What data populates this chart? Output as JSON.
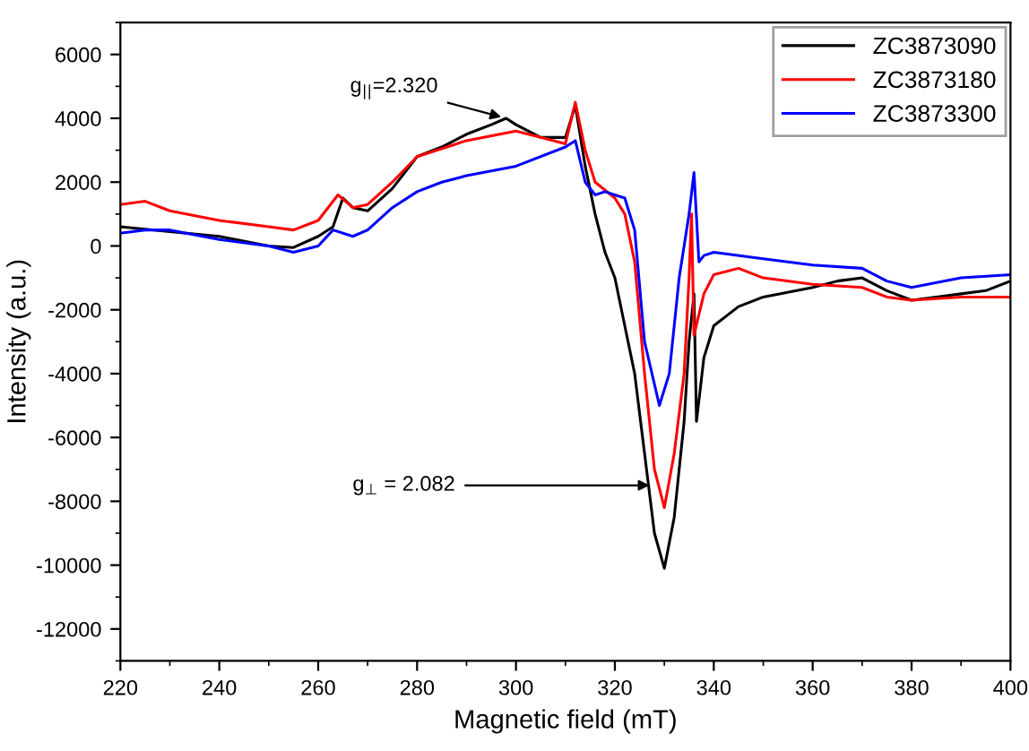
{
  "chart_data": {
    "type": "line",
    "xlabel": "Magnetic field (mT)",
    "ylabel": "Intensity (a.u.)",
    "xlim": [
      220,
      400
    ],
    "xticks": [
      220,
      240,
      260,
      280,
      300,
      320,
      340,
      360,
      380,
      400
    ],
    "ylim": [
      -13000,
      7000
    ],
    "yticks": [
      -12000,
      -10000,
      -8000,
      -6000,
      -4000,
      -2000,
      0,
      2000,
      4000,
      6000
    ],
    "legend": "top right",
    "grid": false,
    "annotations": [
      {
        "text": "g$_{||}$=2.320",
        "x": 298,
        "y": 4000
      },
      {
        "text": "g$_{⊥}$ = 2.082",
        "x": 328,
        "y": -7500
      }
    ],
    "series": [
      {
        "name": "ZC3873090",
        "color": "#000000",
        "x": [
          220,
          230,
          240,
          250,
          255,
          260,
          263,
          265,
          267,
          270,
          275,
          280,
          285,
          290,
          295,
          298,
          300,
          305,
          310,
          312,
          314,
          316,
          318,
          320,
          322,
          324,
          326,
          328,
          330,
          332,
          334,
          335,
          336,
          336.5,
          338,
          340,
          345,
          350,
          360,
          365,
          370,
          375,
          380,
          385,
          390,
          395,
          400
        ],
        "values": [
          600,
          450,
          300,
          0,
          -50,
          300,
          600,
          1500,
          1200,
          1100,
          1800,
          2800,
          3100,
          3500,
          3800,
          4000,
          3800,
          3400,
          3400,
          4400,
          2500,
          1000,
          -200,
          -1000,
          -2500,
          -4000,
          -6500,
          -9000,
          -10100,
          -8500,
          -5500,
          -3000,
          -1500,
          -5500,
          -3500,
          -2500,
          -1900,
          -1600,
          -1300,
          -1100,
          -1000,
          -1400,
          -1700,
          -1600,
          -1500,
          -1400,
          -1100
        ]
      },
      {
        "name": "ZC3873180",
        "color": "#ff0000",
        "x": [
          220,
          225,
          230,
          240,
          250,
          255,
          260,
          264,
          267,
          270,
          275,
          280,
          290,
          300,
          305,
          310,
          312,
          314,
          316,
          320,
          322,
          324,
          326,
          328,
          330,
          332,
          334,
          335,
          335.5,
          336,
          338,
          340,
          345,
          350,
          360,
          370,
          375,
          380,
          390,
          400
        ],
        "values": [
          1300,
          1400,
          1100,
          800,
          600,
          500,
          800,
          1600,
          1200,
          1300,
          2000,
          2800,
          3300,
          3600,
          3400,
          3200,
          4500,
          3000,
          2000,
          1500,
          1000,
          -500,
          -4000,
          -7000,
          -8200,
          -6500,
          -4000,
          -1000,
          1000,
          -2800,
          -1500,
          -900,
          -700,
          -1000,
          -1200,
          -1300,
          -1600,
          -1700,
          -1600,
          -1600
        ]
      },
      {
        "name": "ZC3873300",
        "color": "#0000ff",
        "x": [
          220,
          225,
          230,
          240,
          250,
          255,
          260,
          263,
          267,
          270,
          275,
          280,
          285,
          290,
          300,
          310,
          312,
          314,
          316,
          318,
          320,
          322,
          324,
          326,
          329,
          331,
          333,
          335,
          336,
          337,
          338,
          340,
          350,
          360,
          370,
          375,
          380,
          390,
          400
        ],
        "values": [
          400,
          500,
          500,
          200,
          0,
          -200,
          0,
          500,
          300,
          500,
          1200,
          1700,
          2000,
          2200,
          2500,
          3100,
          3300,
          2000,
          1600,
          1700,
          1600,
          1500,
          500,
          -3000,
          -5000,
          -4000,
          -1000,
          1000,
          2300,
          -500,
          -300,
          -200,
          -400,
          -600,
          -700,
          -1100,
          -1300,
          -1000,
          -900
        ]
      }
    ]
  }
}
